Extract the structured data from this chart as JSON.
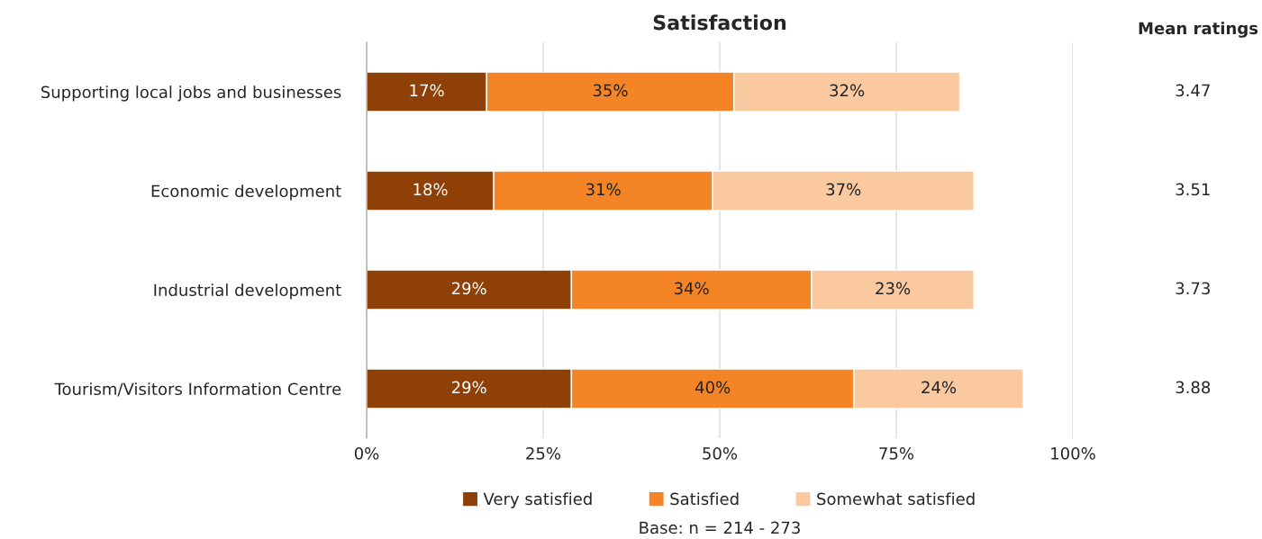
{
  "chart_data": {
    "type": "bar",
    "orientation": "horizontal",
    "stacked": true,
    "title": "Satisfaction",
    "categories": [
      "Supporting local jobs and businesses",
      "Economic development",
      "Industrial development",
      "Tourism/Visitors Information Centre"
    ],
    "series": [
      {
        "name": "Very satisfied",
        "color": "#8e4006",
        "values": [
          17,
          18,
          29,
          29
        ],
        "value_labels": [
          "17%",
          "18%",
          "29%",
          "29%"
        ]
      },
      {
        "name": "Satisfied",
        "color": "#f58426",
        "values": [
          35,
          31,
          34,
          40
        ],
        "value_labels": [
          "35%",
          "31%",
          "34%",
          "40%"
        ]
      },
      {
        "name": "Somewhat satisfied",
        "color": "#fbc9a0",
        "values": [
          32,
          37,
          23,
          24
        ],
        "value_labels": [
          "32%",
          "37%",
          "23%",
          "24%"
        ]
      }
    ],
    "xlim": [
      0,
      100
    ],
    "xticks": [
      {
        "value": 0,
        "label": "0%"
      },
      {
        "value": 25,
        "label": "25%"
      },
      {
        "value": 50,
        "label": "50%"
      },
      {
        "value": 75,
        "label": "75%"
      },
      {
        "value": 100,
        "label": "100%"
      }
    ],
    "grid": "x",
    "legend": "bottom",
    "annotations": [
      "Mean ratings",
      "3.47",
      "3.51",
      "3.73",
      "3.88",
      "Base: n = 214 - 273"
    ]
  }
}
